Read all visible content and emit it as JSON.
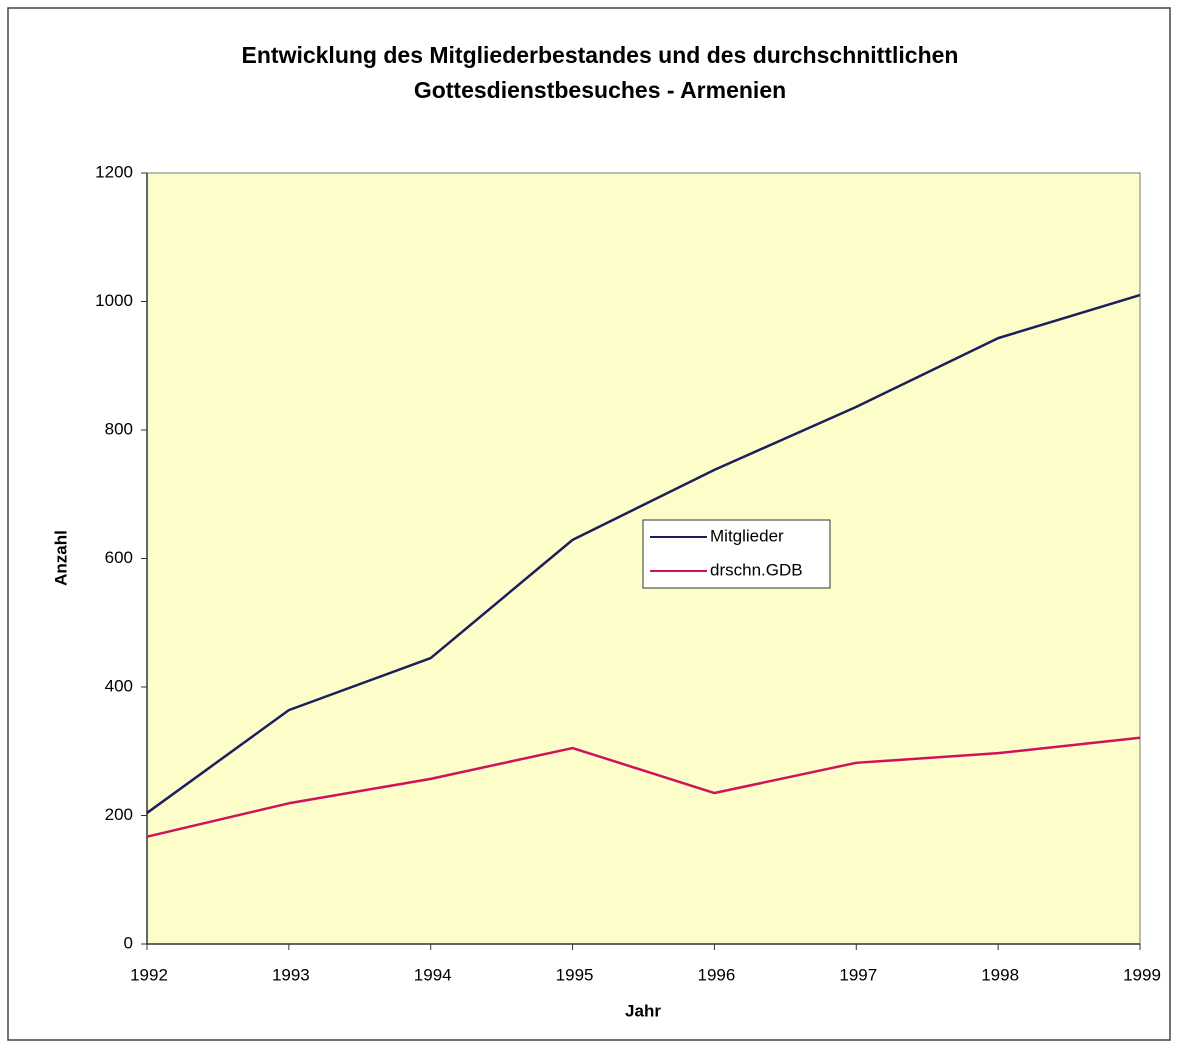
{
  "chart_data": {
    "type": "line",
    "title": [
      "Entwicklung des Mitgliederbestandes und des durchschnittlichen",
      "Gottesdienstbesuches - Armenien"
    ],
    "x_label": "Jahr",
    "y_label": "Anzahl",
    "x": [
      1992,
      1993,
      1994,
      1995,
      1996,
      1997,
      1998,
      1999
    ],
    "xlim": [
      1992,
      1999
    ],
    "xticks": [
      1992,
      1993,
      1994,
      1995,
      1996,
      1997,
      1998,
      1999
    ],
    "ylim": [
      0,
      1200
    ],
    "yticks": [
      0,
      200,
      400,
      600,
      800,
      1000,
      1200
    ],
    "grid": false,
    "legend": "center",
    "series": [
      {
        "name": "Mitglieder",
        "color": "#1c1f5c",
        "values": [
          204,
          364,
          445,
          629,
          738,
          836,
          943,
          1010
        ]
      },
      {
        "name": "drschn.GDB",
        "color": "#d0125a",
        "values": [
          167,
          219,
          257,
          305,
          235,
          282,
          297,
          321
        ]
      }
    ]
  }
}
